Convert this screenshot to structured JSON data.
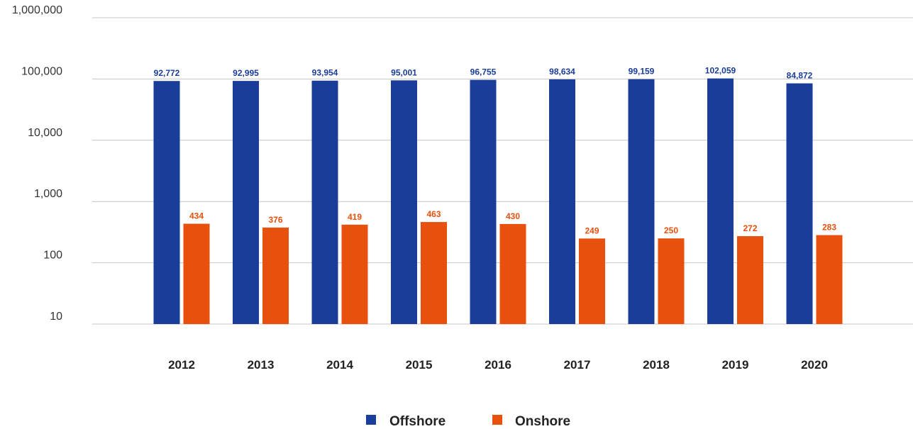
{
  "chart_data": {
    "type": "bar",
    "y_scale": "log",
    "ylim": [
      10,
      1000000
    ],
    "y_ticks": [
      10,
      100,
      1000,
      10000,
      100000,
      1000000
    ],
    "y_tick_labels": [
      "10",
      "100",
      "1,000",
      "10,000",
      "100,000",
      "1,000,000"
    ],
    "grid": true,
    "legend_position": "bottom",
    "categories": [
      "2012",
      "2013",
      "2014",
      "2015",
      "2016",
      "2017",
      "2018",
      "2019",
      "2020"
    ],
    "series": [
      {
        "name": "Offshore",
        "color": "#1a3d99",
        "values": [
          92772,
          92995,
          93954,
          95001,
          96755,
          98634,
          99159,
          102059,
          84872
        ],
        "labels": [
          "92,772",
          "92,995",
          "93,954",
          "95,001",
          "96,755",
          "98,634",
          "99,159",
          "102,059",
          "84,872"
        ]
      },
      {
        "name": "Onshore",
        "color": "#e8500e",
        "values": [
          434,
          376,
          419,
          463,
          430,
          249,
          250,
          272,
          283
        ],
        "labels": [
          "434",
          "376",
          "419",
          "463",
          "430",
          "249",
          "250",
          "272",
          "283"
        ]
      }
    ]
  }
}
